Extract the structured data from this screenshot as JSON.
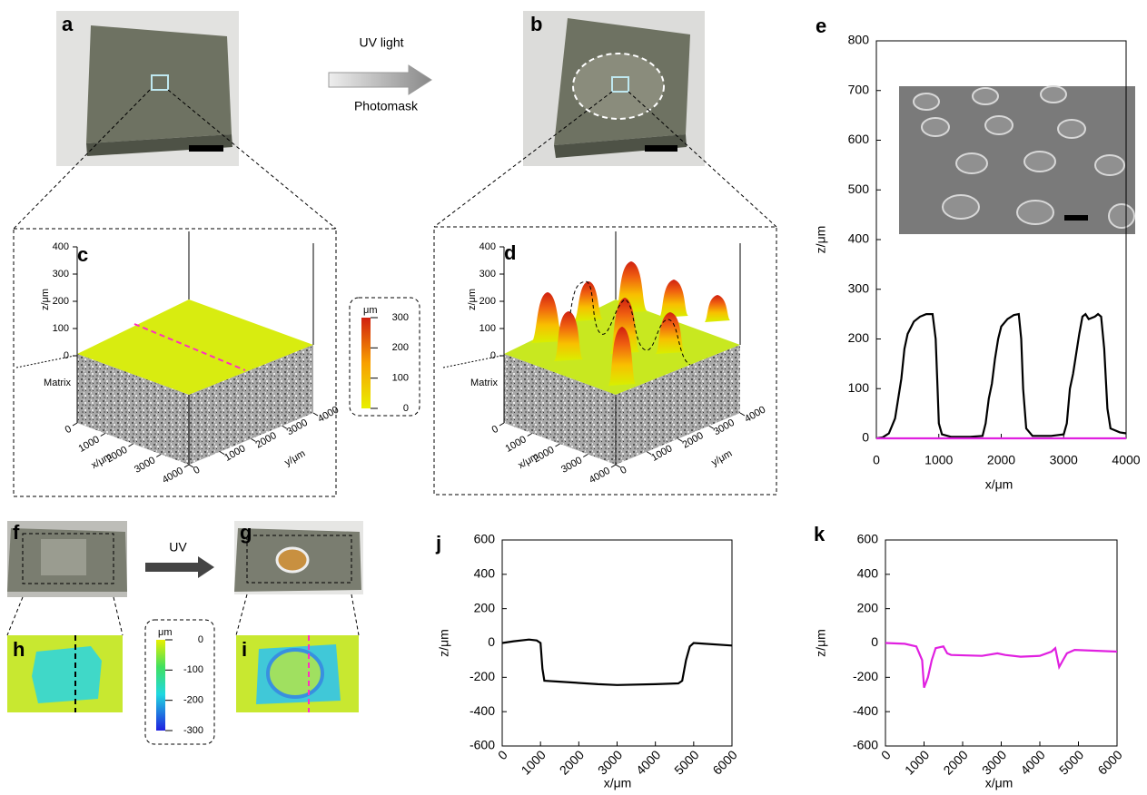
{
  "panels": [
    "a",
    "b",
    "c",
    "d",
    "e",
    "f",
    "g",
    "h",
    "i",
    "j",
    "k"
  ],
  "process": {
    "top_above": "UV light",
    "top_below": "Photomask",
    "bottom": "UV"
  },
  "surface_axes": {
    "z_label": "z/μm",
    "x_label": "x/μm",
    "y_label": "y/μm",
    "z_ticks": [
      0,
      100,
      200,
      300,
      400
    ],
    "x_ticks": [
      0,
      1000,
      2000,
      3000,
      4000
    ],
    "y_ticks": [
      0,
      1000,
      2000,
      3000,
      4000
    ],
    "base_label": "Matrix"
  },
  "colorbars": [
    {
      "unit": "μm",
      "lim": [
        0,
        300
      ],
      "ticks": [
        0,
        100,
        200,
        300
      ]
    },
    {
      "unit": "μm",
      "lim": [
        -300,
        0
      ],
      "ticks": [
        0,
        -100,
        -200,
        -300
      ]
    }
  ],
  "chart_data": [
    {
      "type": "line",
      "xlabel": "x/μm",
      "ylabel": "z/μm",
      "xlim": [
        0,
        4000
      ],
      "ylim": [
        0,
        800
      ],
      "xticks": [
        0,
        1000,
        2000,
        3000,
        4000
      ],
      "yticks": [
        0,
        100,
        200,
        300,
        400,
        500,
        600,
        700,
        800
      ],
      "series": [
        {
          "color": "#000000",
          "x": [
            0,
            100,
            200,
            300,
            400,
            450,
            500,
            600,
            700,
            800,
            900,
            950,
            980,
            1000,
            1050,
            1200,
            1500,
            1700,
            1750,
            1800,
            1850,
            1900,
            1950,
            2000,
            2100,
            2200,
            2280,
            2320,
            2350,
            2400,
            2500,
            2800,
            3000,
            3050,
            3100,
            3150,
            3200,
            3250,
            3300,
            3350,
            3400,
            3500,
            3550,
            3600,
            3650,
            3700,
            3750,
            3900,
            4000
          ],
          "values": [
            0,
            2,
            10,
            40,
            120,
            180,
            210,
            235,
            245,
            250,
            250,
            200,
            100,
            30,
            8,
            3,
            3,
            5,
            30,
            80,
            110,
            160,
            200,
            225,
            240,
            248,
            250,
            200,
            100,
            20,
            5,
            5,
            8,
            30,
            100,
            130,
            170,
            210,
            245,
            250,
            240,
            245,
            250,
            245,
            180,
            60,
            20,
            12,
            10
          ]
        },
        {
          "color": "#e020e0",
          "x": [
            0,
            4000
          ],
          "values": [
            0,
            0
          ]
        }
      ]
    },
    {
      "type": "line",
      "xlabel": "x/μm",
      "ylabel": "z/μm",
      "xlim": [
        0,
        6000
      ],
      "ylim": [
        -600,
        600
      ],
      "xticks": [
        0,
        1000,
        2000,
        3000,
        4000,
        5000,
        6000
      ],
      "yticks": [
        -600,
        -400,
        -200,
        0,
        200,
        400,
        600
      ],
      "series": [
        {
          "color": "#000000",
          "x": [
            0,
            300,
            700,
            900,
            1000,
            1050,
            1100,
            1500,
            2500,
            3000,
            4000,
            4600,
            4700,
            4800,
            4900,
            5000,
            5300,
            6000
          ],
          "values": [
            0,
            10,
            20,
            15,
            0,
            -150,
            -220,
            -225,
            -240,
            -245,
            -240,
            -235,
            -220,
            -100,
            -20,
            0,
            -5,
            -15
          ]
        }
      ]
    },
    {
      "type": "line",
      "xlabel": "x/μm",
      "ylabel": "z/μm",
      "xlim": [
        0,
        6000
      ],
      "ylim": [
        -600,
        600
      ],
      "xticks": [
        0,
        1000,
        2000,
        3000,
        4000,
        5000,
        6000
      ],
      "yticks": [
        -600,
        -400,
        -200,
        0,
        200,
        400,
        600
      ],
      "series": [
        {
          "color": "#e020e0",
          "x": [
            0,
            500,
            800,
            950,
            1000,
            1100,
            1200,
            1300,
            1500,
            1600,
            1700,
            2500,
            2900,
            3100,
            3500,
            4000,
            4300,
            4400,
            4500,
            4600,
            4700,
            4900,
            6000
          ],
          "values": [
            0,
            -5,
            -20,
            -100,
            -260,
            -200,
            -100,
            -30,
            -20,
            -60,
            -70,
            -75,
            -60,
            -70,
            -80,
            -75,
            -50,
            -30,
            -140,
            -100,
            -60,
            -40,
            -50
          ]
        }
      ]
    }
  ]
}
